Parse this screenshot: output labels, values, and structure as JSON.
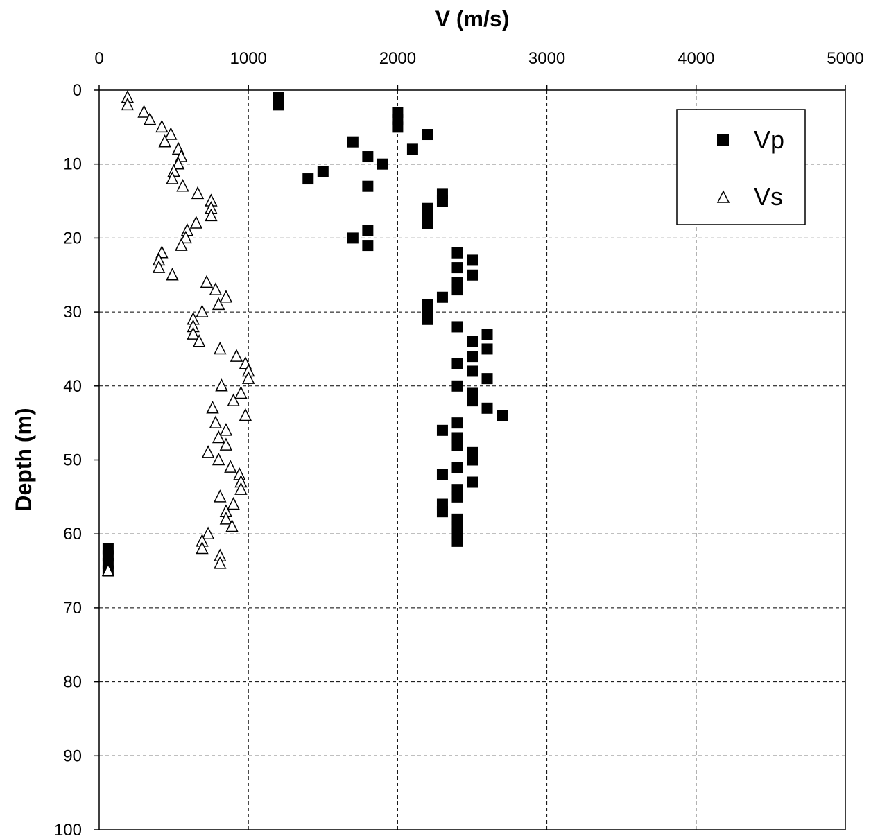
{
  "chart_data": {
    "type": "scatter",
    "xlabel": "V (m/s)",
    "ylabel": "Depth (m)",
    "xlim": [
      0,
      5000
    ],
    "ylim": [
      0,
      100
    ],
    "y_inverted": true,
    "x_axis_position": "top",
    "x_ticks": [
      "0",
      "1000",
      "2000",
      "3000",
      "4000",
      "5000"
    ],
    "y_ticks": [
      "0",
      "10",
      "20",
      "30",
      "40",
      "50",
      "60",
      "70",
      "80",
      "90",
      "100"
    ],
    "grid": true,
    "legend_position": "top-right",
    "series": [
      {
        "name": "Vp",
        "marker": "filled-square",
        "color": "#000000",
        "points": [
          [
            1200,
            1
          ],
          [
            1200,
            2
          ],
          [
            2000,
            3
          ],
          [
            2000,
            4
          ],
          [
            2000,
            5
          ],
          [
            2200,
            6
          ],
          [
            1700,
            7
          ],
          [
            2100,
            8
          ],
          [
            1800,
            9
          ],
          [
            1900,
            10
          ],
          [
            1500,
            11
          ],
          [
            1400,
            12
          ],
          [
            1800,
            13
          ],
          [
            2300,
            14
          ],
          [
            2300,
            15
          ],
          [
            2200,
            16
          ],
          [
            2200,
            17
          ],
          [
            2200,
            18
          ],
          [
            1800,
            19
          ],
          [
            1700,
            20
          ],
          [
            1800,
            21
          ],
          [
            2400,
            22
          ],
          [
            2500,
            23
          ],
          [
            2400,
            24
          ],
          [
            2500,
            25
          ],
          [
            2400,
            26
          ],
          [
            2400,
            27
          ],
          [
            2300,
            28
          ],
          [
            2200,
            29
          ],
          [
            2200,
            30
          ],
          [
            2200,
            31
          ],
          [
            2400,
            32
          ],
          [
            2600,
            33
          ],
          [
            2500,
            34
          ],
          [
            2600,
            35
          ],
          [
            2500,
            36
          ],
          [
            2400,
            37
          ],
          [
            2500,
            38
          ],
          [
            2600,
            39
          ],
          [
            2400,
            40
          ],
          [
            2500,
            41
          ],
          [
            2500,
            42
          ],
          [
            2600,
            43
          ],
          [
            2700,
            44
          ],
          [
            2400,
            45
          ],
          [
            2300,
            46
          ],
          [
            2400,
            47
          ],
          [
            2400,
            48
          ],
          [
            2500,
            49
          ],
          [
            2500,
            50
          ],
          [
            2400,
            51
          ],
          [
            2300,
            52
          ],
          [
            2500,
            53
          ],
          [
            2400,
            54
          ],
          [
            2400,
            55
          ],
          [
            2300,
            56
          ],
          [
            2300,
            57
          ],
          [
            2400,
            58
          ],
          [
            2400,
            59
          ],
          [
            2400,
            60
          ],
          [
            2400,
            61
          ],
          [
            60,
            62
          ],
          [
            60,
            63
          ],
          [
            60,
            64
          ],
          [
            60,
            65
          ]
        ]
      },
      {
        "name": "Vs",
        "marker": "open-triangle",
        "color": "#000000",
        "points": [
          [
            190,
            1
          ],
          [
            190,
            2
          ],
          [
            300,
            3
          ],
          [
            340,
            4
          ],
          [
            420,
            5
          ],
          [
            480,
            6
          ],
          [
            440,
            7
          ],
          [
            530,
            8
          ],
          [
            550,
            9
          ],
          [
            530,
            10
          ],
          [
            500,
            11
          ],
          [
            490,
            12
          ],
          [
            560,
            13
          ],
          [
            660,
            14
          ],
          [
            750,
            15
          ],
          [
            750,
            16
          ],
          [
            750,
            17
          ],
          [
            650,
            18
          ],
          [
            590,
            19
          ],
          [
            580,
            20
          ],
          [
            550,
            21
          ],
          [
            420,
            22
          ],
          [
            400,
            23
          ],
          [
            400,
            24
          ],
          [
            490,
            25
          ],
          [
            720,
            26
          ],
          [
            780,
            27
          ],
          [
            850,
            28
          ],
          [
            800,
            29
          ],
          [
            690,
            30
          ],
          [
            630,
            31
          ],
          [
            630,
            32
          ],
          [
            630,
            33
          ],
          [
            670,
            34
          ],
          [
            810,
            35
          ],
          [
            920,
            36
          ],
          [
            980,
            37
          ],
          [
            1000,
            38
          ],
          [
            1000,
            39
          ],
          [
            820,
            40
          ],
          [
            950,
            41
          ],
          [
            900,
            42
          ],
          [
            760,
            43
          ],
          [
            980,
            44
          ],
          [
            780,
            45
          ],
          [
            850,
            46
          ],
          [
            800,
            47
          ],
          [
            850,
            48
          ],
          [
            730,
            49
          ],
          [
            800,
            50
          ],
          [
            880,
            51
          ],
          [
            940,
            52
          ],
          [
            950,
            53
          ],
          [
            950,
            54
          ],
          [
            810,
            55
          ],
          [
            900,
            56
          ],
          [
            850,
            57
          ],
          [
            850,
            58
          ],
          [
            890,
            59
          ],
          [
            730,
            60
          ],
          [
            690,
            61
          ],
          [
            690,
            62
          ],
          [
            810,
            63
          ],
          [
            810,
            64
          ],
          [
            60,
            65
          ]
        ]
      }
    ]
  }
}
